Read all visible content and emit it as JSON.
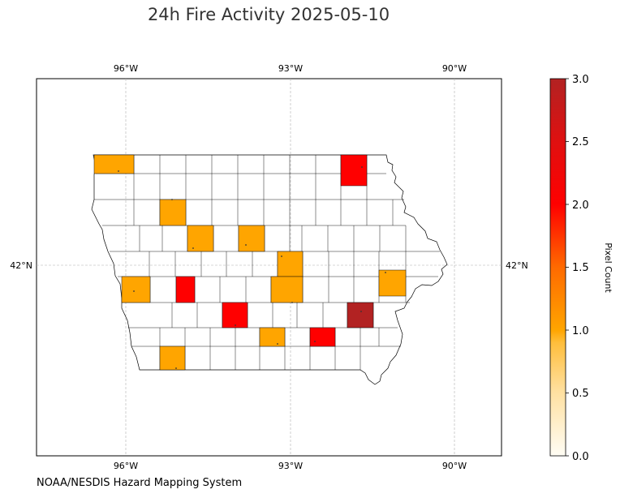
{
  "title": "24h Fire Activity 2025-05-10",
  "attribution": "NOAA/NESDIS Hazard Mapping System",
  "map": {
    "lon_ticks": [
      "96°W",
      "93°W",
      "90°W"
    ],
    "lat_ticks": [
      "42°N"
    ],
    "gridlines": true
  },
  "colorbar": {
    "label": "Pixel Count",
    "min": 0,
    "max": 3,
    "ticks": [
      "0.0",
      "0.5",
      "1.0",
      "1.5",
      "2.0",
      "2.5",
      "3.0"
    ],
    "colors": [
      "#fffdf5",
      "#ffe0a0",
      "#ffc24d",
      "#ffa500",
      "#ff6a00",
      "#ff0000",
      "#e00a0a",
      "#b22222"
    ]
  },
  "fire_counties": [
    {
      "count": 1,
      "color": "#ffa500"
    },
    {
      "count": 2,
      "color": "#ff0000"
    },
    {
      "count": 1,
      "color": "#ffa500"
    },
    {
      "count": 1,
      "color": "#ffa500"
    },
    {
      "count": 1,
      "color": "#ffa500"
    },
    {
      "count": 1,
      "color": "#ffa500"
    },
    {
      "count": 1,
      "color": "#ffa500"
    },
    {
      "count": 2,
      "color": "#ff0000"
    },
    {
      "count": 1,
      "color": "#ffa500"
    },
    {
      "count": 1,
      "color": "#ffa500"
    },
    {
      "count": 3,
      "color": "#b22222"
    },
    {
      "count": 2,
      "color": "#ff0000"
    },
    {
      "count": 1,
      "color": "#ffa500"
    },
    {
      "count": 2,
      "color": "#ff0000"
    },
    {
      "count": 1,
      "color": "#ffa500"
    }
  ]
}
